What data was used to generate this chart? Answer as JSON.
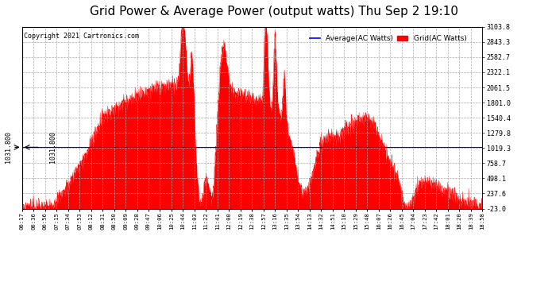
{
  "title": "Grid Power & Average Power (output watts) Thu Sep 2 19:10",
  "copyright": "Copyright 2021 Cartronics.com",
  "legend_average": "Average(AC Watts)",
  "legend_grid": "Grid(AC Watts)",
  "y_left_label": "1031.800",
  "y_right_label": "1031.800",
  "y_right_ticks": [
    3103.8,
    2843.3,
    2582.7,
    2322.1,
    2061.5,
    1801.0,
    1540.4,
    1279.8,
    1019.3,
    758.7,
    498.1,
    237.6,
    -23.0
  ],
  "avg_line_value": 1031.8,
  "ymin": -23.0,
  "ymax": 3103.8,
  "background_color": "#ffffff",
  "fill_color": "#ff0000",
  "line_color": "#ff0000",
  "avg_line_color": "#0000ff",
  "title_fontsize": 11,
  "x_labels": [
    "06:17",
    "06:36",
    "06:56",
    "07:15",
    "07:34",
    "07:53",
    "08:12",
    "08:31",
    "08:50",
    "09:09",
    "09:28",
    "09:47",
    "10:06",
    "10:25",
    "10:44",
    "11:03",
    "11:22",
    "11:41",
    "12:00",
    "12:19",
    "12:38",
    "12:57",
    "13:16",
    "13:35",
    "13:54",
    "14:13",
    "14:32",
    "14:51",
    "15:10",
    "15:29",
    "15:48",
    "16:07",
    "16:26",
    "16:45",
    "17:04",
    "17:23",
    "17:42",
    "18:01",
    "18:20",
    "18:39",
    "18:58"
  ]
}
